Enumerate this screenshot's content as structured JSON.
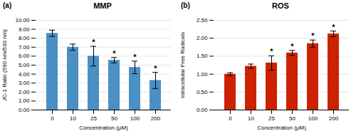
{
  "chart_data": [
    {
      "type": "bar",
      "title": "MMP",
      "xlabel": "Concentration (μM)",
      "ylabel": "JC-1 Ratio (590 nm/530 nm)",
      "categories": [
        "0",
        "10",
        "25",
        "50",
        "100",
        "200"
      ],
      "values": [
        8.55,
        7.0,
        6.0,
        5.55,
        4.75,
        3.3
      ],
      "errors": [
        0.35,
        0.35,
        1.1,
        0.3,
        0.7,
        0.9
      ],
      "stars": [
        null,
        null,
        "*",
        "*",
        "*",
        "*"
      ],
      "color": "#4a90c4",
      "ylim": [
        0,
        10.0
      ],
      "yticks": [
        {
          "value": 0.0,
          "label": "0.00"
        },
        {
          "value": 1.0,
          "label": "1.00"
        },
        {
          "value": 2.0,
          "label": "2.00"
        },
        {
          "value": 3.0,
          "label": "3.00"
        },
        {
          "value": 4.0,
          "label": "4.00"
        },
        {
          "value": 5.0,
          "label": "5.00"
        },
        {
          "value": 6.0,
          "label": "6.00"
        },
        {
          "value": 7.0,
          "label": "7.00"
        },
        {
          "value": 8.0,
          "label": "8.00"
        },
        {
          "value": 9.0,
          "label": "9.00"
        },
        {
          "value": 10.0,
          "label": "10.00"
        }
      ],
      "grid": true,
      "annotations": [
        "(a)"
      ]
    },
    {
      "type": "bar",
      "title": "ROS",
      "xlabel": "Concentration (μM)",
      "ylabel": "Intracellular Free Radicals",
      "categories": [
        "0",
        "10",
        "25",
        "50",
        "100",
        "200"
      ],
      "values": [
        1.0,
        1.22,
        1.31,
        1.59,
        1.85,
        2.12
      ],
      "errors": [
        0.04,
        0.06,
        0.2,
        0.07,
        0.1,
        0.08
      ],
      "stars": [
        null,
        null,
        "*",
        "*",
        "*",
        "*"
      ],
      "color": "#cc2200",
      "ylim": [
        0,
        2.5
      ],
      "yticks": [
        {
          "value": 0.0,
          "label": "0.00"
        },
        {
          "value": 0.5,
          "label": "0.50"
        },
        {
          "value": 1.0,
          "label": "1.00"
        },
        {
          "value": 1.5,
          "label": "1.50"
        },
        {
          "value": 2.0,
          "label": "2.00"
        },
        {
          "value": 2.5,
          "label": "2.50"
        }
      ],
      "grid": true,
      "annotations": [
        "(b)"
      ]
    }
  ]
}
